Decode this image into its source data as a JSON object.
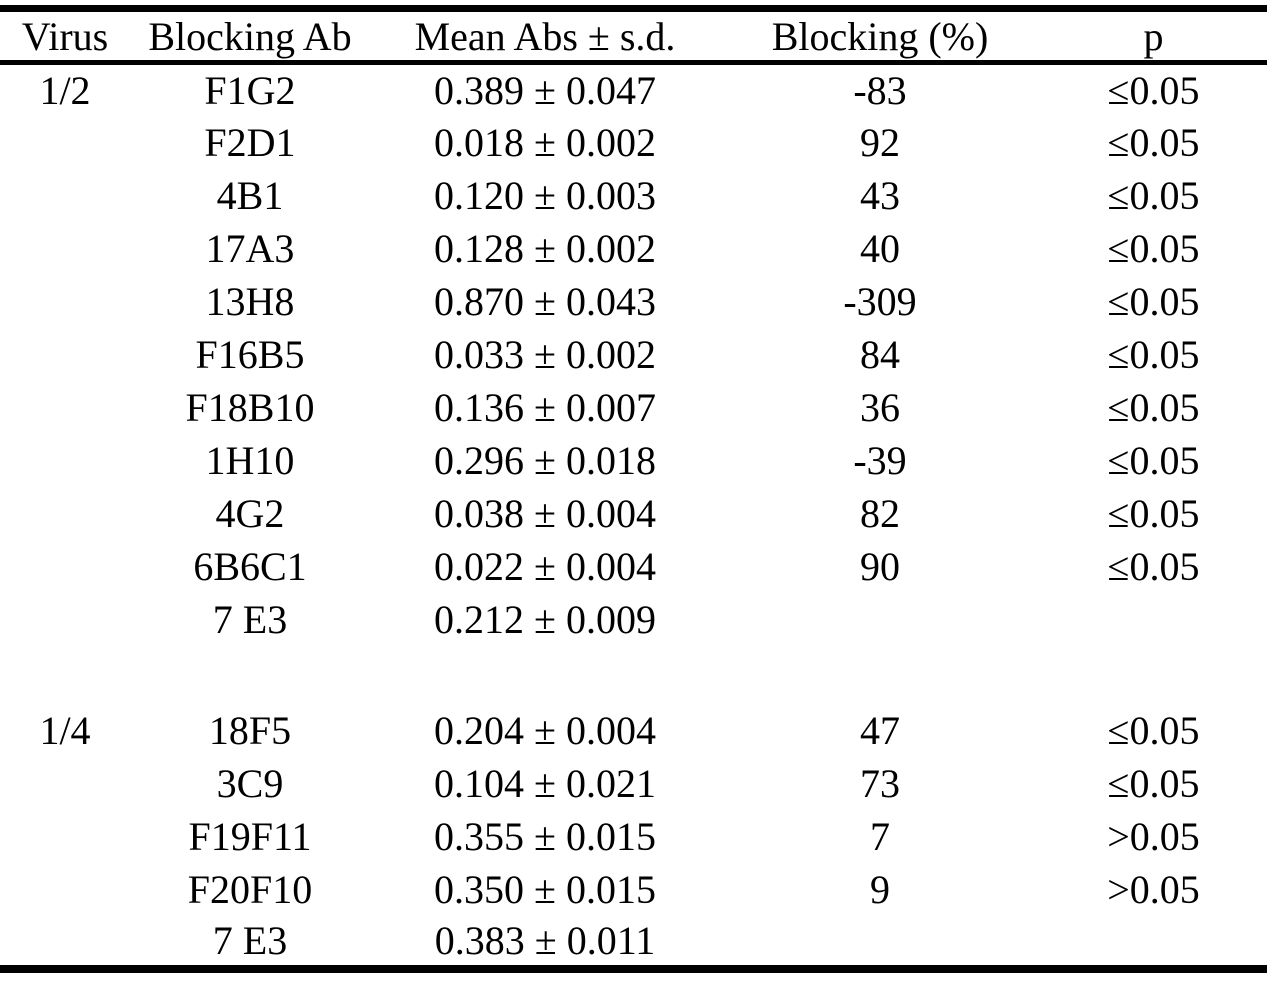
{
  "table": {
    "columns": [
      "Virus",
      "Blocking Ab",
      "Mean Abs ± s.d.",
      "Blocking (%)",
      "p"
    ],
    "rows": [
      {
        "virus": "1/2",
        "blocking_ab": "F1G2",
        "mean_abs_sd": "0.389 ± 0.047",
        "blocking_pct": "-83",
        "p": "≤0.05"
      },
      {
        "virus": "",
        "blocking_ab": "F2D1",
        "mean_abs_sd": "0.018 ± 0.002",
        "blocking_pct": "92",
        "p": "≤0.05"
      },
      {
        "virus": "",
        "blocking_ab": "4B1",
        "mean_abs_sd": "0.120 ± 0.003",
        "blocking_pct": "43",
        "p": "≤0.05"
      },
      {
        "virus": "",
        "blocking_ab": "17A3",
        "mean_abs_sd": "0.128 ± 0.002",
        "blocking_pct": "40",
        "p": "≤0.05"
      },
      {
        "virus": "",
        "blocking_ab": "13H8",
        "mean_abs_sd": "0.870 ± 0.043",
        "blocking_pct": "-309",
        "p": "≤0.05"
      },
      {
        "virus": "",
        "blocking_ab": "F16B5",
        "mean_abs_sd": "0.033 ± 0.002",
        "blocking_pct": "84",
        "p": "≤0.05"
      },
      {
        "virus": "",
        "blocking_ab": "F18B10",
        "mean_abs_sd": "0.136 ± 0.007",
        "blocking_pct": "36",
        "p": "≤0.05"
      },
      {
        "virus": "",
        "blocking_ab": "1H10",
        "mean_abs_sd": "0.296 ± 0.018",
        "blocking_pct": "-39",
        "p": "≤0.05"
      },
      {
        "virus": "",
        "blocking_ab": "4G2",
        "mean_abs_sd": "0.038 ± 0.004",
        "blocking_pct": "82",
        "p": "≤0.05"
      },
      {
        "virus": "",
        "blocking_ab": "6B6C1",
        "mean_abs_sd": "0.022 ± 0.004",
        "blocking_pct": "90",
        "p": "≤0.05"
      },
      {
        "virus": "",
        "blocking_ab": "7 E3",
        "mean_abs_sd": "0.212 ± 0.009",
        "blocking_pct": "",
        "p": ""
      },
      {
        "spacer": true,
        "virus": "",
        "blocking_ab": "",
        "mean_abs_sd": "",
        "blocking_pct": "",
        "p": ""
      },
      {
        "virus": "1/4",
        "blocking_ab": "18F5",
        "mean_abs_sd": "0.204 ± 0.004",
        "blocking_pct": "47",
        "p": "≤0.05"
      },
      {
        "virus": "",
        "blocking_ab": "3C9",
        "mean_abs_sd": "0.104 ± 0.021",
        "blocking_pct": "73",
        "p": "≤0.05"
      },
      {
        "virus": "",
        "blocking_ab": "F19F11",
        "mean_abs_sd": "0.355 ± 0.015",
        "blocking_pct": "7",
        "p": ">0.05"
      },
      {
        "virus": "",
        "blocking_ab": "F20F10",
        "mean_abs_sd": "0.350 ± 0.015",
        "blocking_pct": "9",
        "p": ">0.05"
      },
      {
        "virus": "",
        "blocking_ab": "7 E3",
        "mean_abs_sd": "0.383 ± 0.011",
        "blocking_pct": "",
        "p": ""
      }
    ],
    "colors": {
      "text": "#000000",
      "background": "#ffffff",
      "rule": "#000000"
    }
  }
}
